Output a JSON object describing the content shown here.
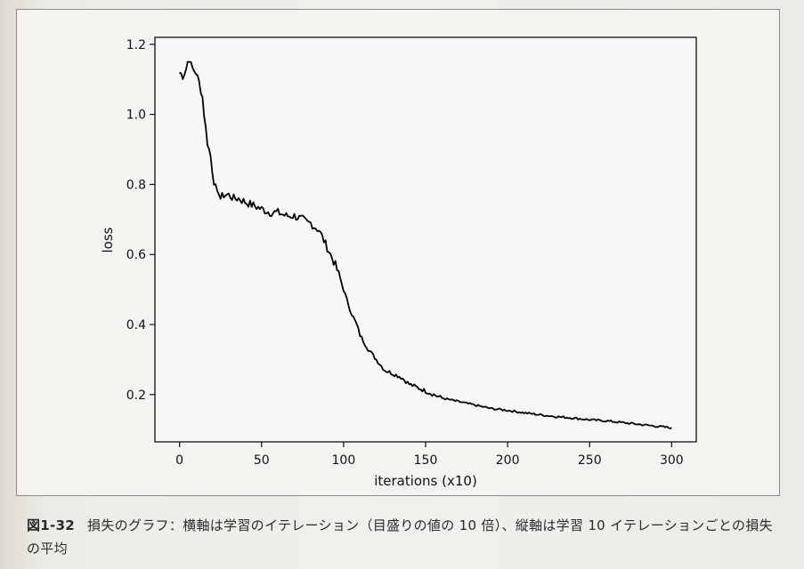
{
  "chart_data": {
    "type": "line",
    "title": "",
    "xlabel": "iterations (x10)",
    "ylabel": "loss",
    "xlim": [
      -15,
      315
    ],
    "ylim": [
      0.065,
      1.22
    ],
    "xticks": [
      0,
      50,
      100,
      150,
      200,
      250,
      300
    ],
    "yticks": [
      0.2,
      0.4,
      0.6,
      0.8,
      1.0,
      1.2
    ],
    "xtick_labels": [
      "0",
      "50",
      "100",
      "150",
      "200",
      "250",
      "300"
    ],
    "ytick_labels": [
      "0.2",
      "0.4",
      "0.6",
      "0.8",
      "1.0",
      "1.2"
    ],
    "grid": false,
    "series": [
      {
        "color": "#000000",
        "x": [
          0,
          2,
          4,
          5,
          6,
          7,
          8,
          10,
          12,
          14,
          15,
          16,
          17,
          18,
          19,
          20,
          21,
          22,
          23,
          24,
          25,
          27,
          30,
          33,
          36,
          40,
          45,
          50,
          55,
          60,
          65,
          70,
          75,
          78,
          80,
          82,
          85,
          88,
          90,
          92,
          95,
          98,
          100,
          102,
          105,
          108,
          110,
          115,
          120,
          125,
          130,
          135,
          140,
          150,
          160,
          170,
          180,
          190,
          200,
          210,
          220,
          230,
          240,
          250,
          260,
          270,
          280,
          290,
          300
        ],
        "y": [
          1.12,
          1.11,
          1.13,
          1.15,
          1.16,
          1.14,
          1.13,
          1.12,
          1.09,
          1.05,
          1.0,
          0.96,
          0.92,
          0.9,
          0.88,
          0.84,
          0.81,
          0.79,
          0.77,
          0.78,
          0.76,
          0.77,
          0.77,
          0.76,
          0.76,
          0.75,
          0.74,
          0.73,
          0.72,
          0.72,
          0.71,
          0.71,
          0.7,
          0.69,
          0.69,
          0.68,
          0.67,
          0.64,
          0.62,
          0.6,
          0.57,
          0.53,
          0.5,
          0.47,
          0.43,
          0.4,
          0.37,
          0.33,
          0.3,
          0.27,
          0.26,
          0.25,
          0.23,
          0.21,
          0.19,
          0.18,
          0.17,
          0.16,
          0.155,
          0.148,
          0.142,
          0.137,
          0.133,
          0.128,
          0.125,
          0.12,
          0.115,
          0.11,
          0.105
        ]
      }
    ]
  },
  "caption": {
    "figure_number": "図1-32",
    "text": "損失のグラフ：横軸は学習のイテレーション（目盛りの値の 10 倍）、縦軸は学習 10 イテレーションごとの損失の平均"
  }
}
